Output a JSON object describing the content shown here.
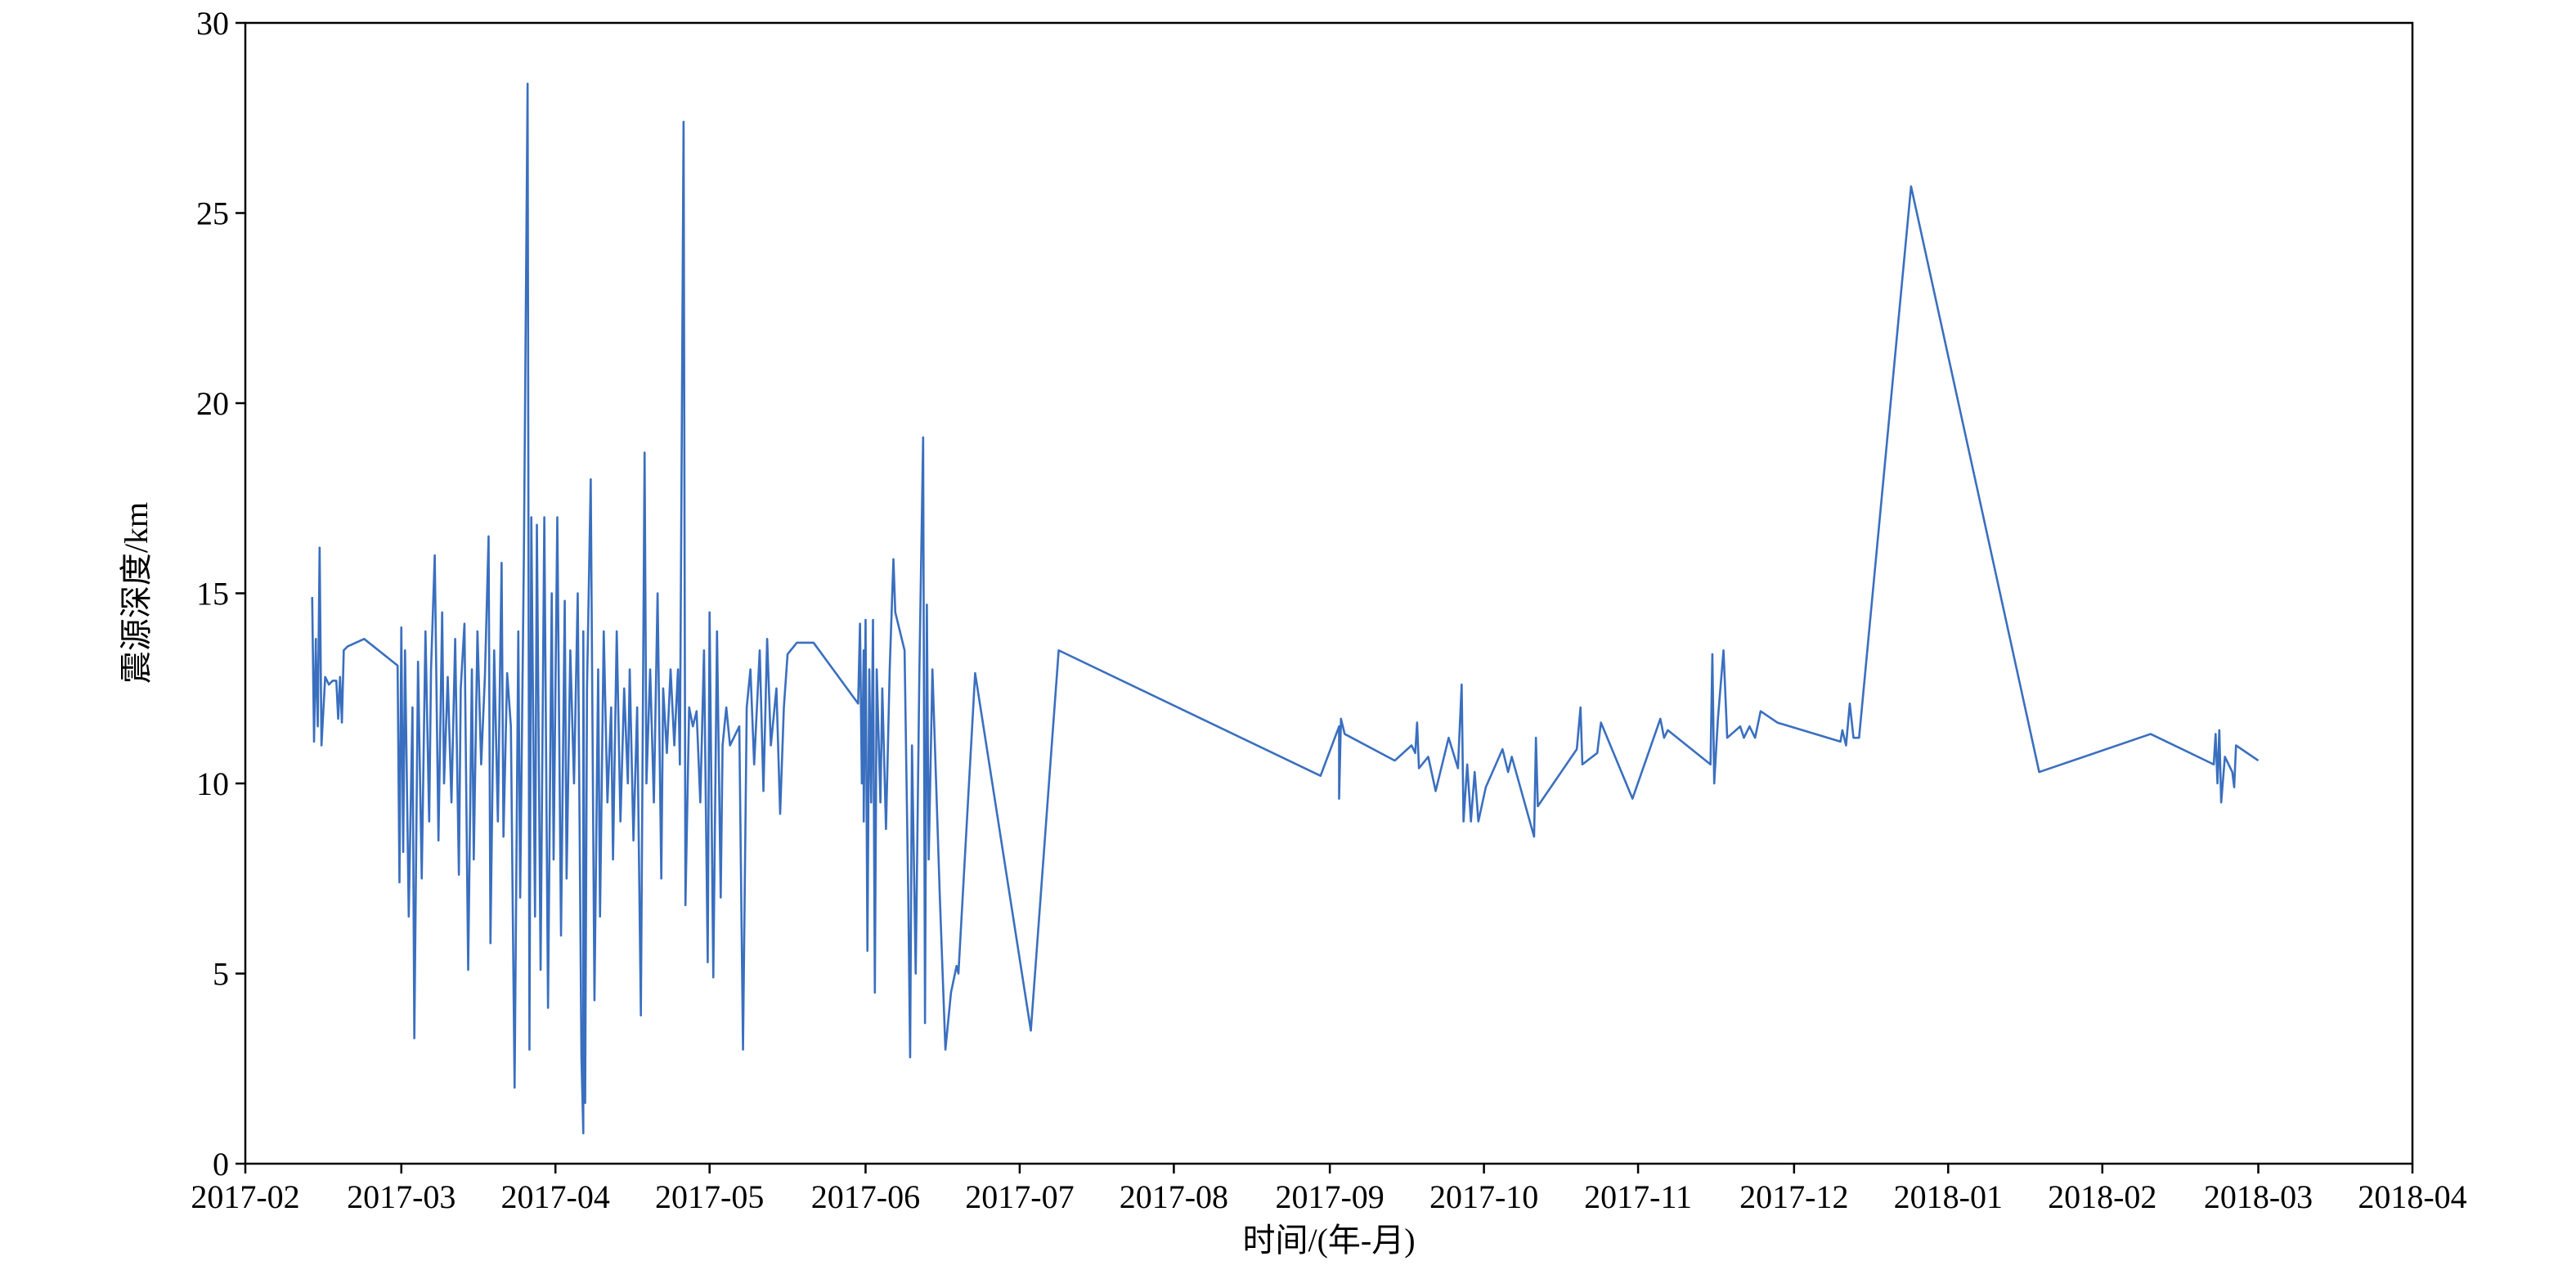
{
  "chart_data": {
    "type": "line",
    "x_label": "时间/(年-月)",
    "y_label": "震源深度/km",
    "color": "#3a6fbf",
    "xlim": [
      2017.083,
      2018.25
    ],
    "xticks": [
      {
        "value": 2017.083,
        "label": "2017-02"
      },
      {
        "value": 2017.167,
        "label": "2017-03"
      },
      {
        "value": 2017.25,
        "label": "2017-04"
      },
      {
        "value": 2017.333,
        "label": "2017-05"
      },
      {
        "value": 2017.417,
        "label": "2017-06"
      },
      {
        "value": 2017.5,
        "label": "2017-07"
      },
      {
        "value": 2017.583,
        "label": "2017-08"
      },
      {
        "value": 2017.667,
        "label": "2017-09"
      },
      {
        "value": 2017.75,
        "label": "2017-10"
      },
      {
        "value": 2017.833,
        "label": "2017-11"
      },
      {
        "value": 2017.917,
        "label": "2017-12"
      },
      {
        "value": 2018.0,
        "label": "2018-01"
      },
      {
        "value": 2018.083,
        "label": "2018-02"
      },
      {
        "value": 2018.167,
        "label": "2018-03"
      },
      {
        "value": 2018.25,
        "label": "2018-04"
      }
    ],
    "ylim": [
      0,
      30
    ],
    "yticks": [
      0,
      5,
      10,
      15,
      20,
      25,
      30
    ],
    "x": [
      2017.119,
      2017.12,
      2017.121,
      2017.121,
      2017.122,
      2017.123,
      2017.124,
      2017.126,
      2017.128,
      2017.13,
      2017.132,
      2017.133,
      2017.134,
      2017.135,
      2017.136,
      2017.138,
      2017.147,
      2017.165,
      2017.166,
      2017.167,
      2017.168,
      2017.169,
      2017.171,
      2017.173,
      2017.174,
      2017.176,
      2017.178,
      2017.18,
      2017.182,
      2017.183,
      2017.185,
      2017.187,
      2017.189,
      2017.19,
      2017.192,
      2017.194,
      2017.196,
      2017.198,
      2017.199,
      2017.201,
      2017.203,
      2017.205,
      2017.206,
      2017.208,
      2017.21,
      2017.212,
      2017.214,
      2017.215,
      2017.217,
      2017.219,
      2017.221,
      2017.222,
      2017.224,
      2017.226,
      2017.228,
      2017.23,
      2017.231,
      2017.233,
      2017.235,
      2017.236,
      2017.237,
      2017.239,
      2017.24,
      2017.242,
      2017.244,
      2017.246,
      2017.248,
      2017.249,
      2017.251,
      2017.253,
      2017.255,
      2017.256,
      2017.258,
      2017.26,
      2017.262,
      2017.264,
      2017.265,
      2017.265,
      2017.266,
      2017.267,
      2017.269,
      2017.271,
      2017.273,
      2017.274,
      2017.276,
      2017.278,
      2017.28,
      2017.281,
      2017.283,
      2017.285,
      2017.287,
      2017.289,
      2017.29,
      2017.292,
      2017.294,
      2017.296,
      2017.298,
      2017.299,
      2017.301,
      2017.303,
      2017.305,
      2017.307,
      2017.308,
      2017.31,
      2017.312,
      2017.314,
      2017.316,
      2017.317,
      2017.319,
      2017.32,
      2017.322,
      2017.324,
      2017.326,
      2017.328,
      2017.33,
      2017.332,
      2017.333,
      2017.335,
      2017.337,
      2017.339,
      2017.34,
      2017.342,
      2017.344,
      2017.349,
      2017.351,
      2017.353,
      2017.355,
      2017.357,
      2017.36,
      2017.362,
      2017.364,
      2017.366,
      2017.369,
      2017.371,
      2017.373,
      2017.375,
      2017.38,
      2017.389,
      2017.413,
      2017.414,
      2017.415,
      2017.416,
      2017.416,
      2017.417,
      2017.418,
      2017.419,
      2017.42,
      2017.421,
      2017.422,
      2017.423,
      2017.425,
      2017.426,
      2017.428,
      2017.43,
      2017.432,
      2017.433,
      2017.438,
      2017.44,
      2017.441,
      2017.442,
      2017.444,
      2017.446,
      2017.448,
      2017.449,
      2017.45,
      2017.451,
      2017.453,
      2017.457,
      2017.46,
      2017.463,
      2017.466,
      2017.467,
      2017.476,
      2017.506,
      2017.521,
      2017.662,
      2017.672,
      2017.672,
      2017.673,
      2017.675,
      2017.702,
      2017.711,
      2017.713,
      2017.714,
      2017.715,
      2017.72,
      2017.724,
      2017.731,
      2017.736,
      2017.738,
      2017.739,
      2017.741,
      2017.743,
      2017.745,
      2017.747,
      2017.751,
      2017.76,
      2017.763,
      2017.765,
      2017.777,
      2017.778,
      2017.779,
      2017.8,
      2017.802,
      2017.803,
      2017.811,
      2017.813,
      2017.83,
      2017.845,
      2017.847,
      2017.849,
      2017.872,
      2017.873,
      2017.874,
      2017.876,
      2017.879,
      2017.881,
      2017.888,
      2017.89,
      2017.893,
      2017.896,
      2017.899,
      2017.908,
      2017.942,
      2017.943,
      2017.945,
      2017.947,
      2017.949,
      2017.952,
      2017.98,
      2018.049,
      2018.109,
      2018.143,
      2018.144,
      2018.145,
      2018.146,
      2018.147,
      2018.149,
      2018.153,
      2018.154,
      2018.155,
      2018.167
    ],
    "values": [
      14.9,
      11.1,
      13.8,
      13.5,
      11.5,
      16.2,
      11.0,
      12.8,
      12.6,
      12.7,
      12.7,
      11.7,
      12.8,
      11.6,
      13.5,
      13.6,
      13.8,
      13.1,
      7.4,
      14.1,
      8.2,
      13.5,
      6.5,
      12.0,
      3.3,
      13.2,
      7.5,
      14.0,
      9.0,
      13.0,
      16.0,
      8.5,
      14.5,
      10.0,
      12.8,
      9.5,
      13.8,
      7.6,
      12.5,
      14.2,
      5.1,
      13.0,
      8.0,
      14.0,
      10.5,
      12.8,
      16.5,
      5.8,
      13.5,
      9.0,
      15.8,
      8.6,
      12.9,
      11.5,
      2.0,
      14.0,
      7.0,
      16.0,
      28.4,
      3.0,
      17.0,
      6.5,
      16.8,
      5.1,
      17.0,
      4.1,
      15.0,
      8.0,
      17.0,
      6.0,
      14.8,
      7.5,
      13.5,
      10.0,
      15.0,
      2.8,
      0.8,
      14.0,
      1.6,
      12.5,
      18.0,
      4.3,
      13.0,
      6.5,
      14.0,
      9.5,
      12.0,
      8.0,
      14.0,
      9.0,
      12.5,
      10.0,
      13.0,
      8.5,
      12.0,
      3.9,
      18.7,
      10.0,
      13.0,
      9.5,
      15.0,
      7.5,
      12.5,
      10.8,
      13.0,
      11.0,
      13.0,
      10.5,
      27.4,
      6.8,
      12.0,
      11.5,
      11.9,
      9.5,
      13.5,
      5.3,
      14.5,
      4.9,
      14.0,
      7.0,
      11.0,
      12.0,
      11.0,
      11.5,
      3.0,
      12.0,
      13.0,
      10.5,
      13.5,
      9.8,
      13.8,
      11.0,
      12.5,
      9.2,
      12.0,
      13.4,
      13.7,
      13.7,
      12.1,
      14.2,
      10.0,
      13.5,
      9.0,
      14.3,
      5.6,
      13.0,
      9.5,
      14.3,
      4.5,
      13.0,
      9.5,
      12.5,
      8.8,
      13.0,
      15.9,
      14.5,
      13.5,
      7.0,
      2.8,
      11.0,
      5.0,
      13.0,
      19.1,
      3.7,
      14.7,
      8.0,
      13.0,
      7.0,
      3.0,
      4.5,
      5.2,
      5.0,
      12.9,
      3.5,
      13.5,
      10.2,
      11.5,
      9.6,
      11.7,
      11.3,
      10.6,
      11.0,
      10.8,
      11.6,
      10.4,
      10.7,
      9.8,
      11.2,
      10.4,
      12.6,
      9.0,
      10.5,
      9.0,
      10.3,
      9.0,
      9.9,
      10.9,
      10.3,
      10.7,
      8.6,
      11.2,
      9.4,
      10.9,
      12.0,
      10.5,
      10.8,
      11.6,
      9.6,
      11.7,
      11.2,
      11.4,
      10.5,
      13.4,
      10.0,
      11.7,
      13.5,
      11.2,
      11.5,
      11.2,
      11.5,
      11.2,
      11.9,
      11.6,
      11.1,
      11.4,
      11.0,
      12.1,
      11.2,
      11.2,
      25.7,
      10.3,
      11.3,
      10.5,
      11.3,
      10.0,
      11.4,
      9.5,
      10.7,
      10.3,
      9.9,
      11.0,
      10.6
    ]
  }
}
